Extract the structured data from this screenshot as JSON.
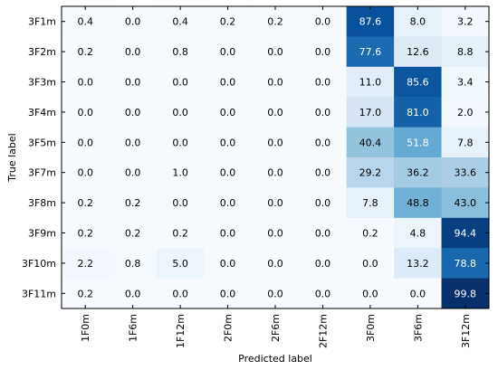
{
  "chart_data": {
    "type": "heatmap",
    "xlabel": "Predicted label",
    "ylabel": "True label",
    "x_categories": [
      "1F0m",
      "1F6m",
      "1F12m",
      "2F0m",
      "2F6m",
      "2F12m",
      "3F0m",
      "3F6m",
      "3F12m"
    ],
    "y_categories": [
      "3F1m",
      "3F2m",
      "3F3m",
      "3F4m",
      "3F5m",
      "3F7m",
      "3F8m",
      "3F9m",
      "3F10m",
      "3F11m"
    ],
    "values": [
      [
        0.4,
        0.0,
        0.4,
        0.2,
        0.2,
        0.0,
        87.6,
        8.0,
        3.2
      ],
      [
        0.2,
        0.0,
        0.8,
        0.0,
        0.0,
        0.0,
        77.6,
        12.6,
        8.8
      ],
      [
        0.0,
        0.0,
        0.0,
        0.0,
        0.0,
        0.0,
        11.0,
        85.6,
        3.4
      ],
      [
        0.0,
        0.0,
        0.0,
        0.0,
        0.0,
        0.0,
        17.0,
        81.0,
        2.0
      ],
      [
        0.0,
        0.0,
        0.0,
        0.0,
        0.0,
        0.0,
        40.4,
        51.8,
        7.8
      ],
      [
        0.0,
        0.0,
        1.0,
        0.0,
        0.0,
        0.0,
        29.2,
        36.2,
        33.6
      ],
      [
        0.2,
        0.2,
        0.0,
        0.0,
        0.0,
        0.0,
        7.8,
        48.8,
        43.0
      ],
      [
        0.2,
        0.2,
        0.2,
        0.0,
        0.0,
        0.0,
        0.2,
        4.8,
        94.4
      ],
      [
        2.2,
        0.8,
        5.0,
        0.0,
        0.0,
        0.0,
        0.0,
        13.2,
        78.8
      ],
      [
        0.2,
        0.0,
        0.0,
        0.0,
        0.0,
        0.0,
        0.0,
        0.0,
        99.8
      ]
    ],
    "value_format": "0.0",
    "colormap": "Blues",
    "color_range": [
      0,
      100
    ],
    "grid": false,
    "legend": "none"
  },
  "colors": {
    "cmap_low": "#f7fbff",
    "cmap_high": "#08306b",
    "text_dark": "#000000",
    "text_light": "#ffffff"
  }
}
